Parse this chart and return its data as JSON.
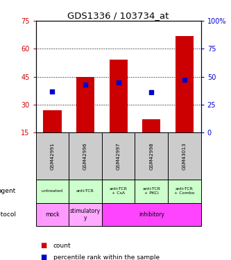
{
  "title": "GDS1336 / 103734_at",
  "samples": [
    "GSM42991",
    "GSM42996",
    "GSM42997",
    "GSM42998",
    "GSM43013"
  ],
  "bar_heights": [
    27,
    45,
    54,
    22,
    67
  ],
  "percentile_values": [
    37,
    43,
    45,
    36,
    47
  ],
  "bar_color": "#cc0000",
  "dot_color": "#0000cc",
  "ylim_left": [
    15,
    75
  ],
  "yticks_left": [
    15,
    30,
    45,
    60,
    75
  ],
  "ylim_right": [
    0,
    100
  ],
  "yticks_right": [
    0,
    25,
    50,
    75,
    100
  ],
  "right_tick_labels": [
    "0",
    "25",
    "50",
    "75",
    "100%"
  ],
  "left_tick_color": "#cc0000",
  "right_tick_color": "#0000cc",
  "agent_labels": [
    "untreated",
    "anti-TCR",
    "anti-TCR\n+ CsA",
    "anti-TCR\n+ PKCi",
    "anti-TCR\n+ Combo"
  ],
  "agent_bg_color": "#ccffcc",
  "protocol_mock_color": "#ff99ff",
  "protocol_stimulatory_color": "#ffaaff",
  "protocol_inhibitory_color": "#ff44ff",
  "sample_bg_color": "#cccccc",
  "legend_count_color": "#cc0000",
  "legend_dot_color": "#0000cc",
  "protocol_spans": [
    [
      0,
      1,
      "mock"
    ],
    [
      1,
      2,
      "stimulatory\ny"
    ],
    [
      2,
      5,
      "inhibitory"
    ]
  ]
}
